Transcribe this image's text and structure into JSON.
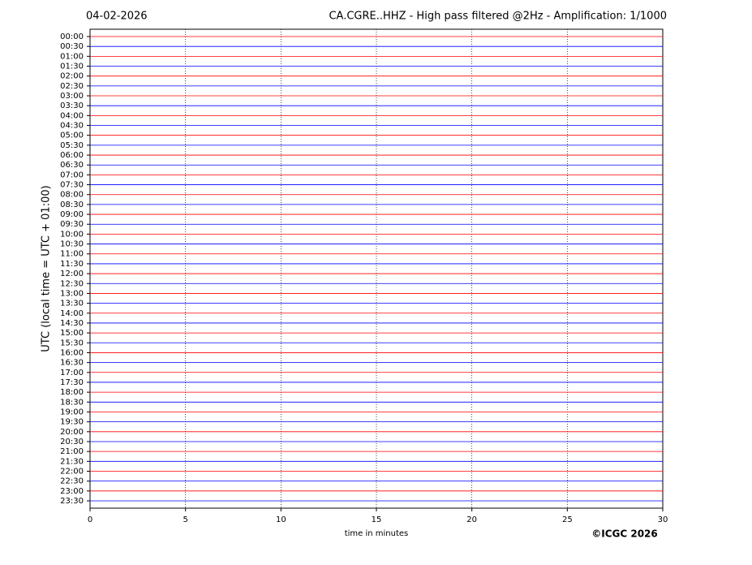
{
  "chart_data": {
    "type": "helicorder",
    "date": "04-02-2026",
    "title": "CA.CGRE..HHZ - High pass filtered @2Hz - Amplification: 1/1000",
    "y_label": "UTC (local time = UTC + 01:00)",
    "x_label": "time in minutes",
    "credit": "©ICGC 2026",
    "categories": [
      "00:00",
      "00:30",
      "01:00",
      "01:30",
      "02:00",
      "02:30",
      "03:00",
      "03:30",
      "04:00",
      "04:30",
      "05:00",
      "05:30",
      "06:00",
      "06:30",
      "07:00",
      "07:30",
      "08:00",
      "08:30",
      "09:00",
      "09:30",
      "10:00",
      "10:30",
      "11:00",
      "11:30",
      "12:00",
      "12:30",
      "13:00",
      "13:30",
      "14:00",
      "14:30",
      "15:00",
      "15:30",
      "16:00",
      "16:30",
      "17:00",
      "17:30",
      "18:00",
      "18:30",
      "19:00",
      "19:30",
      "20:00",
      "20:30",
      "21:00",
      "21:30",
      "22:00",
      "22:30",
      "23:00",
      "23:30"
    ],
    "trace_colors": [
      "#ff0000",
      "#0000ff"
    ],
    "xlim": [
      0,
      30
    ],
    "xticks": [
      0,
      5,
      10,
      15,
      20,
      25,
      30
    ],
    "grid": true
  }
}
